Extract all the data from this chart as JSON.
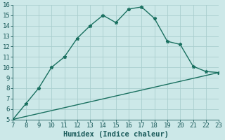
{
  "title": "",
  "xlabel": "Humidex (Indice chaleur)",
  "ylabel": "",
  "background_color": "#cce8e8",
  "grid_color": "#aacece",
  "line_color": "#1a7060",
  "xlim": [
    7,
    23
  ],
  "ylim": [
    5,
    16
  ],
  "xticks": [
    7,
    8,
    9,
    10,
    11,
    12,
    13,
    14,
    15,
    16,
    17,
    18,
    19,
    20,
    21,
    22,
    23
  ],
  "yticks": [
    5,
    6,
    7,
    8,
    9,
    10,
    11,
    12,
    13,
    14,
    15,
    16
  ],
  "curve1_x": [
    7,
    8,
    9,
    10,
    11,
    12,
    13,
    14,
    15,
    16,
    17,
    18,
    19,
    20,
    21,
    22,
    23
  ],
  "curve1_y": [
    5.0,
    6.5,
    8.0,
    10.0,
    11.0,
    12.8,
    14.0,
    15.0,
    14.3,
    15.6,
    15.8,
    14.7,
    12.5,
    12.2,
    10.1,
    9.6,
    9.5
  ],
  "curve2_x": [
    7,
    23
  ],
  "curve2_y": [
    5.0,
    9.5
  ],
  "marker": "*",
  "markersize": 3.5,
  "linewidth": 1.0,
  "tick_fontsize": 6.5,
  "xlabel_fontsize": 7.5,
  "tick_color": "#1a5a5a",
  "xlabel_color": "#1a5a5a"
}
